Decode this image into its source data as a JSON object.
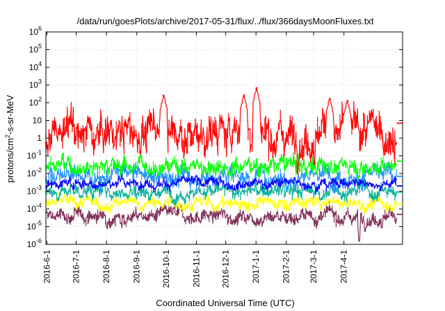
{
  "chart_data": {
    "type": "line",
    "title": "/data/run/goesPlots/archive/2017-05-31/flux/../flux/366daysMoonFluxes.txt",
    "xlabel": "Coordinated Universal Time (UTC)",
    "ylabel_prefix": "protons/cm",
    "ylabel_sup": "2",
    "ylabel_suffix": "-s-sr-MeV",
    "yscale": "log",
    "ylim": [
      1e-06,
      1000000.0
    ],
    "y_ticks": [
      {
        "base": "10",
        "exp": "-6",
        "value": 1e-06
      },
      {
        "base": "10",
        "exp": "-5",
        "value": 1e-05
      },
      {
        "base": "10",
        "exp": "-4",
        "value": 0.0001
      },
      {
        "base": "10",
        "exp": "-3",
        "value": 0.001
      },
      {
        "base": "10",
        "exp": "-2",
        "value": 0.01
      },
      {
        "base": "10",
        "exp": "-1",
        "value": 0.1
      },
      {
        "base": "1",
        "exp": "",
        "value": 1
      },
      {
        "base": "10",
        "exp": "",
        "value": 10
      },
      {
        "base": "10",
        "exp": "2",
        "value": 100.0
      },
      {
        "base": "10",
        "exp": "3",
        "value": 1000.0
      },
      {
        "base": "10",
        "exp": "4",
        "value": 10000.0
      },
      {
        "base": "10",
        "exp": "5",
        "value": 100000.0
      },
      {
        "base": "10",
        "exp": "6",
        "value": 1000000.0
      }
    ],
    "xlim": [
      "2016-05-31",
      "2017-05-31"
    ],
    "x_ticks": [
      {
        "label": "2016-6-1",
        "date": "2016-06-01"
      },
      {
        "label": "2016-7-1",
        "date": "2016-07-01"
      },
      {
        "label": "2016-8-1",
        "date": "2016-08-01"
      },
      {
        "label": "2016-9-1",
        "date": "2016-09-01"
      },
      {
        "label": "2016-10-1",
        "date": "2016-10-01"
      },
      {
        "label": "2016-11-1",
        "date": "2016-11-01"
      },
      {
        "label": "2016-12-1",
        "date": "2016-12-01"
      },
      {
        "label": "2017-1-1",
        "date": "2017-01-01"
      },
      {
        "label": "2017-2-1",
        "date": "2017-02-01"
      },
      {
        "label": "2017-3-1",
        "date": "2017-03-01"
      },
      {
        "label": "2017-4-1",
        "date": "2017-04-01"
      }
    ],
    "grid": true,
    "legend": "none",
    "series": [
      {
        "color": "#7e2b55",
        "typical": 4e-05,
        "spread": 0.45,
        "last": 5e-05,
        "spikes": [
          {
            "date": "2017-04-17",
            "value": 1.5e-06
          }
        ]
      },
      {
        "color": "#ffff00",
        "typical": 0.0002,
        "spread": 0.4,
        "last": 0.00018,
        "spikes": []
      },
      {
        "color": "#00b09a",
        "typical": 0.001,
        "spread": 0.45,
        "last": 0.0009,
        "spikes": []
      },
      {
        "color": "#1e90ff",
        "typical": 0.008,
        "spread": 0.6,
        "last": 0.007,
        "spikes": []
      },
      {
        "color": "#00ff00",
        "typical": 0.03,
        "spread": 0.55,
        "last": 0.05,
        "spikes": []
      },
      {
        "color": "#0000ff",
        "typical": 0.003,
        "spread": 0.3,
        "last": 0.002,
        "spikes": []
      },
      {
        "color": "#ff0000",
        "typical": 2,
        "spread": 1.2,
        "last": 7,
        "spikes": [
          {
            "date": "2016-09-29",
            "value": 300
          },
          {
            "date": "2016-12-20",
            "value": 300
          },
          {
            "date": "2017-01-02",
            "value": 800
          },
          {
            "date": "2017-03-18",
            "value": 200
          },
          {
            "date": "2017-04-05",
            "value": 150
          }
        ]
      }
    ],
    "data_end": "2017-05-25"
  }
}
